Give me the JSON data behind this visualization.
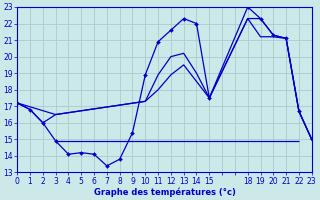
{
  "bg_color": "#cce8e8",
  "line_color": "#0000cc",
  "grid_color": "#aacccc",
  "xlabel": "Graphe des températures (°c)",
  "xlabel_color": "#0000cc",
  "tick_color": "#0000cc",
  "ylim": [
    13,
    23
  ],
  "xlim": [
    0,
    23
  ],
  "yticks": [
    13,
    14,
    15,
    16,
    17,
    18,
    19,
    20,
    21,
    22,
    23
  ],
  "xticks": [
    0,
    1,
    2,
    3,
    4,
    5,
    6,
    7,
    8,
    9,
    10,
    11,
    12,
    13,
    14,
    15,
    18,
    19,
    20,
    21,
    22,
    23
  ],
  "line1_x": [
    0,
    1,
    2,
    3,
    4,
    5,
    6,
    7,
    8,
    9,
    10,
    11,
    12,
    13,
    14,
    15,
    18,
    19,
    20,
    21,
    22,
    23
  ],
  "line1_y": [
    17.2,
    16.8,
    16.0,
    14.9,
    14.1,
    14.2,
    14.1,
    13.4,
    13.8,
    15.4,
    18.9,
    20.9,
    21.6,
    22.3,
    22.0,
    17.5,
    23.0,
    22.3,
    21.3,
    21.1,
    16.7,
    15.0
  ],
  "line2_x": [
    0,
    1,
    2,
    3,
    10,
    11,
    12,
    13,
    14,
    15,
    18,
    19,
    20,
    21,
    22,
    23
  ],
  "line2_y": [
    17.2,
    16.8,
    16.0,
    16.5,
    17.3,
    18.9,
    20.0,
    20.2,
    19.0,
    17.5,
    22.3,
    21.2,
    21.2,
    21.1,
    16.7,
    15.0
  ],
  "line3_x": [
    0,
    3,
    10,
    11,
    12,
    13,
    15,
    18,
    19,
    20,
    21,
    22,
    23
  ],
  "line3_y": [
    17.2,
    16.5,
    17.3,
    18.0,
    18.9,
    19.5,
    17.5,
    22.3,
    22.3,
    21.3,
    21.1,
    16.7,
    15.0
  ],
  "hline_y": 14.9,
  "hline_x_start": 3,
  "hline_x_end": 22
}
